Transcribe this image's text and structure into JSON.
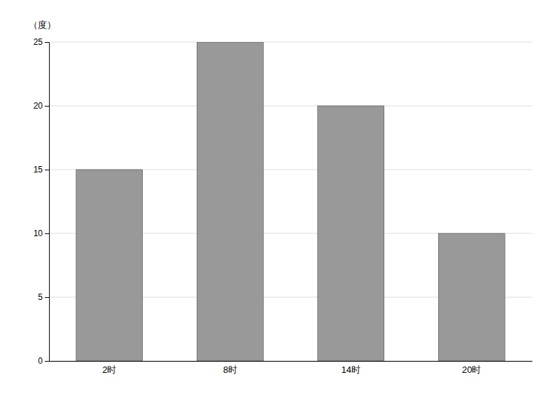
{
  "chart_data": {
    "type": "bar",
    "categories": [
      "2时",
      "8时",
      "14时",
      "20时"
    ],
    "values": [
      15,
      25,
      20,
      10
    ],
    "color": "#999999",
    "ylabel": "（度）",
    "ylim": [
      0,
      25
    ],
    "yticks": [
      0,
      5,
      10,
      15,
      20,
      25
    ],
    "grid": true
  }
}
